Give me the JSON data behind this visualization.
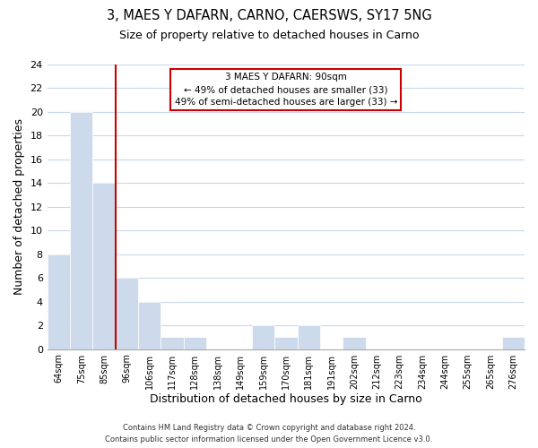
{
  "title": "3, MAES Y DAFARN, CARNO, CAERSWS, SY17 5NG",
  "subtitle": "Size of property relative to detached houses in Carno",
  "xlabel": "Distribution of detached houses by size in Carno",
  "ylabel": "Number of detached properties",
  "bar_labels": [
    "64sqm",
    "75sqm",
    "85sqm",
    "96sqm",
    "106sqm",
    "117sqm",
    "128sqm",
    "138sqm",
    "149sqm",
    "159sqm",
    "170sqm",
    "181sqm",
    "191sqm",
    "202sqm",
    "212sqm",
    "223sqm",
    "234sqm",
    "244sqm",
    "255sqm",
    "265sqm",
    "276sqm"
  ],
  "bar_values": [
    8,
    20,
    14,
    6,
    4,
    1,
    1,
    0,
    0,
    2,
    1,
    2,
    0,
    1,
    0,
    0,
    0,
    0,
    0,
    0,
    1
  ],
  "bar_color": "#ccdaeb",
  "bar_edge_color": "white",
  "vline_color": "#cc0000",
  "vline_x": 2.5,
  "ylim": [
    0,
    24
  ],
  "yticks": [
    0,
    2,
    4,
    6,
    8,
    10,
    12,
    14,
    16,
    18,
    20,
    22,
    24
  ],
  "annotation_title": "3 MAES Y DAFARN: 90sqm",
  "annotation_line1": "← 49% of detached houses are smaller (33)",
  "annotation_line2": "49% of semi-detached houses are larger (33) →",
  "footer_line1": "Contains HM Land Registry data © Crown copyright and database right 2024.",
  "footer_line2": "Contains public sector information licensed under the Open Government Licence v3.0.",
  "grid_color": "#c8d8ea",
  "background_color": "#ffffff"
}
